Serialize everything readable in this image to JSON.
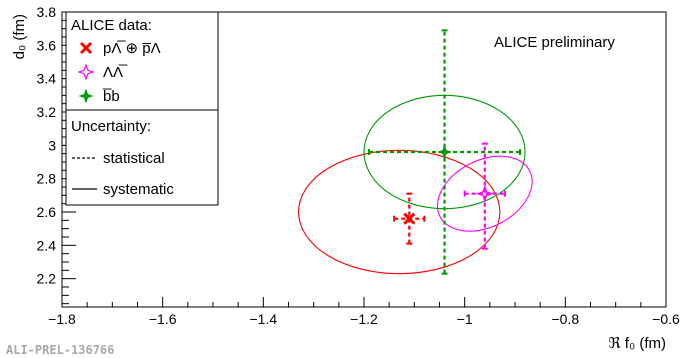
{
  "chart_data": {
    "type": "scatter",
    "xlabel": "ℜ f₀ (fm)",
    "ylabel": "d₀ (fm)",
    "xlim": [
      -1.8,
      -0.6
    ],
    "ylim": [
      2.03,
      3.8
    ],
    "x_ticks": [
      "−1.8",
      "−1.6",
      "−1.4",
      "−1.2",
      "−1",
      "−0.8",
      "−0.6"
    ],
    "x_tick_values": [
      -1.8,
      -1.6,
      -1.4,
      -1.2,
      -1.0,
      -0.8,
      -0.6
    ],
    "y_ticks": [
      "2.2",
      "2.4",
      "2.6",
      "2.8",
      "3",
      "3.2",
      "3.4",
      "3.6",
      "3.8"
    ],
    "y_tick_values": [
      2.2,
      2.4,
      2.6,
      2.8,
      3.0,
      3.2,
      3.4,
      3.6,
      3.8
    ],
    "annotation": "ALICE preliminary",
    "watermark": "ALI-PREL-136766",
    "legend": {
      "data_header": "ALICE data:",
      "uncertainty_header": "Uncertainty:",
      "statistical_label": "statistical",
      "systematic_label": "systematic"
    },
    "series": [
      {
        "name": "pΛ̅ ⊕ p̅Λ",
        "color": "#ff0000",
        "marker": "x-cross",
        "x": -1.11,
        "y": 2.56,
        "stat_x": [
          -1.14,
          -1.08
        ],
        "stat_y": [
          2.41,
          2.71
        ],
        "sys_ellipse": {
          "center": [
            -1.13,
            2.6
          ],
          "rx": 0.2,
          "ry": 0.37
        }
      },
      {
        "name": "ΛΛ̅",
        "color": "#ff00ff",
        "marker": "open-star",
        "x": -0.96,
        "y": 2.71,
        "stat_x": [
          -1.0,
          -0.92
        ],
        "stat_y": [
          2.38,
          3.01
        ],
        "sys_ellipse": {
          "center": [
            -0.96,
            2.71
          ],
          "rx": 0.1,
          "ry": 0.2,
          "angle_deg": -27
        }
      },
      {
        "name": "b̅b",
        "color": "#009900",
        "marker": "filled-star",
        "x": -1.04,
        "y": 2.96,
        "stat_x": [
          -1.19,
          -0.89
        ],
        "stat_y": [
          2.23,
          3.69
        ],
        "sys_ellipse": {
          "center": [
            -1.04,
            2.96
          ],
          "rx": 0.16,
          "ry": 0.34
        }
      }
    ]
  }
}
